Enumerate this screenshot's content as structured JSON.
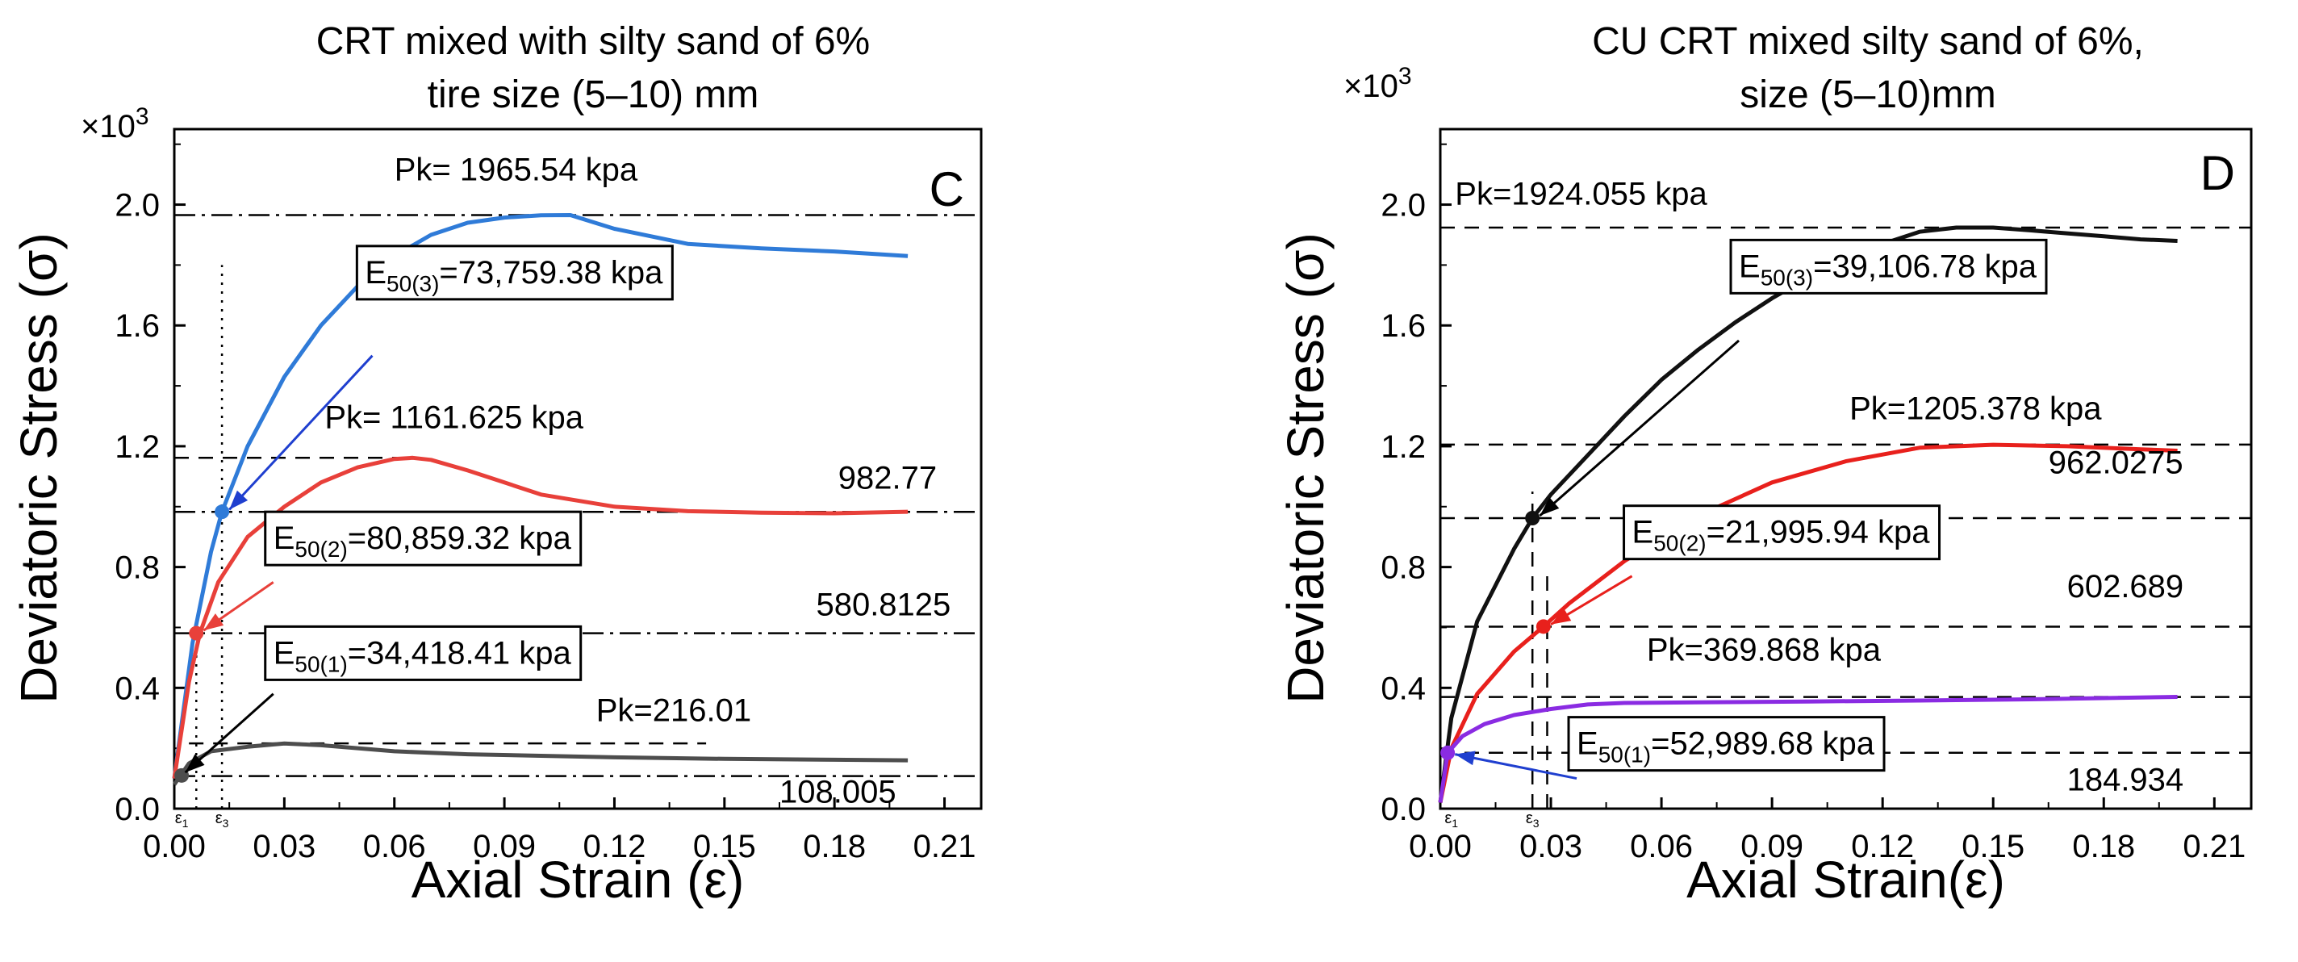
{
  "chart_data": [
    {
      "type": "line",
      "panel_label": "C",
      "title": [
        "CRT mixed with silty sand of 6%",
        "tire size (5–10) mm"
      ],
      "xlabel": "Axial Strain (ε)",
      "ylabel": "Deviatoric Stress (σ)",
      "y_multiplier_base": "×10",
      "y_multiplier_exp": "3",
      "xlim": [
        0,
        0.22
      ],
      "ylim": [
        0,
        2.25
      ],
      "xticks": [
        0,
        0.03,
        0.06,
        0.09,
        0.12,
        0.15,
        0.18,
        0.21
      ],
      "xtick_labels": [
        "0.00",
        "0.03",
        "0.06",
        "0.09",
        "0.12",
        "0.15",
        "0.18",
        "0.21"
      ],
      "yticks": [
        0,
        0.4,
        0.8,
        1.2,
        1.6,
        2.0
      ],
      "ytick_labels": [
        "0.0",
        "0.4",
        "0.8",
        "1.2",
        "1.6",
        "2.0"
      ],
      "series": [
        {
          "name": "blue",
          "color": "#2f7bd8",
          "x": [
            0,
            0.005,
            0.01,
            0.013,
            0.02,
            0.03,
            0.04,
            0.05,
            0.06,
            0.07,
            0.08,
            0.09,
            0.1,
            0.108,
            0.12,
            0.14,
            0.16,
            0.18,
            0.2
          ],
          "y": [
            0.1,
            0.55,
            0.85,
            0.983,
            1.2,
            1.43,
            1.6,
            1.73,
            1.83,
            1.9,
            1.94,
            1.957,
            1.965,
            1.9655,
            1.92,
            1.87,
            1.855,
            1.845,
            1.83
          ]
        },
        {
          "name": "red",
          "color": "#e8403a",
          "x": [
            0,
            0.004,
            0.007,
            0.012,
            0.02,
            0.03,
            0.04,
            0.05,
            0.06,
            0.065,
            0.07,
            0.08,
            0.09,
            0.1,
            0.12,
            0.14,
            0.16,
            0.18,
            0.2
          ],
          "y": [
            0.1,
            0.42,
            0.581,
            0.75,
            0.9,
            1.0,
            1.08,
            1.13,
            1.158,
            1.1616,
            1.155,
            1.12,
            1.08,
            1.04,
            1.0,
            0.985,
            0.98,
            0.978,
            0.983
          ]
        },
        {
          "name": "black",
          "color": "#4d4d4d",
          "x": [
            0,
            0.004,
            0.01,
            0.02,
            0.03,
            0.04,
            0.06,
            0.08,
            0.1,
            0.12,
            0.15,
            0.18,
            0.2
          ],
          "y": [
            0.08,
            0.15,
            0.19,
            0.205,
            0.216,
            0.21,
            0.19,
            0.18,
            0.175,
            0.17,
            0.165,
            0.162,
            0.16
          ]
        }
      ],
      "hlines": [
        {
          "y": 1.96554,
          "style": "dashdot",
          "x_from": 0,
          "x_to": 0.22
        },
        {
          "y": 1.161625,
          "style": "dash",
          "x_from": 0,
          "x_to": 0.065
        },
        {
          "y": 0.98277,
          "style": "dashdot",
          "x_from": 0,
          "x_to": 0.22
        },
        {
          "y": 0.5808125,
          "style": "dashdot",
          "x_from": 0,
          "x_to": 0.22
        },
        {
          "y": 0.21601,
          "style": "dash",
          "x_from": 0.004,
          "x_to": 0.145
        },
        {
          "y": 0.108005,
          "style": "dashdot",
          "x_from": 0,
          "x_to": 0.22
        }
      ],
      "vlines": [
        {
          "x": 0.006,
          "style": "dot",
          "y_from": 0,
          "y_to": 0.6
        },
        {
          "x": 0.013,
          "style": "dot",
          "y_from": 0,
          "y_to": 1.8
        }
      ],
      "points": [
        {
          "x": 0.013,
          "y": 0.983,
          "color": "#2f7bd8"
        },
        {
          "x": 0.006,
          "y": 0.581,
          "color": "#e8403a"
        },
        {
          "x": 0.002,
          "y": 0.11,
          "color": "#4d4d4d"
        }
      ],
      "epsilon_marks": [
        {
          "label": "ε",
          "sub": "1",
          "x": 0.002
        },
        {
          "label": "ε",
          "sub": "3",
          "x": 0.013
        }
      ],
      "annotations": [
        {
          "text": "Pk= 1965.54 kpa",
          "x": 0.06,
          "y": 2.08
        },
        {
          "text": "Pk= 1161.625 kpa",
          "x": 0.041,
          "y": 1.26
        },
        {
          "text": "982.77",
          "x": 0.181,
          "y": 1.06
        },
        {
          "text": "580.8125",
          "x": 0.175,
          "y": 0.64
        },
        {
          "text": "Pk=216.01",
          "x": 0.115,
          "y": 0.29
        },
        {
          "text": "108.005",
          "x": 0.165,
          "y": 0.02
        }
      ],
      "callouts": [
        {
          "main": "E",
          "sub": "50(3)",
          "value": "=73,759.38 kpa",
          "box_x": 0.052,
          "box_y": 1.74,
          "arrow_color": "#1f3fcf",
          "arrow_from": [
            0.054,
            1.5
          ],
          "arrow_to": [
            0.015,
            0.99
          ]
        },
        {
          "main": "E",
          "sub": "50(2)",
          "value": "=80,859.32 kpa",
          "box_x": 0.027,
          "box_y": 0.86,
          "arrow_color": "#e8403a",
          "arrow_from": [
            0.027,
            0.75
          ],
          "arrow_to": [
            0.008,
            0.59
          ]
        },
        {
          "main": "E",
          "sub": "50(1)",
          "value": "=34,418.41 kpa",
          "box_x": 0.027,
          "box_y": 0.48,
          "arrow_color": "#000000",
          "arrow_from": [
            0.027,
            0.38
          ],
          "arrow_to": [
            0.003,
            0.12
          ]
        }
      ]
    },
    {
      "type": "line",
      "panel_label": "D",
      "title": [
        "CU CRT mixed silty sand of 6%,",
        "size (5–10)mm"
      ],
      "xlabel": "Axial Strain(ε)",
      "ylabel": "Deviatoric Stress (σ)",
      "y_multiplier_base": "×10",
      "y_multiplier_exp": "3",
      "xlim": [
        0,
        0.22
      ],
      "ylim": [
        0,
        2.25
      ],
      "xticks": [
        0,
        0.03,
        0.06,
        0.09,
        0.12,
        0.15,
        0.18,
        0.21
      ],
      "xtick_labels": [
        "0.00",
        "0.03",
        "0.06",
        "0.09",
        "0.12",
        "0.15",
        "0.18",
        "0.21"
      ],
      "yticks": [
        0,
        0.4,
        0.8,
        1.2,
        1.6,
        2.0
      ],
      "ytick_labels": [
        "0.0",
        "0.4",
        "0.8",
        "1.2",
        "1.6",
        "2.0"
      ],
      "series": [
        {
          "name": "black",
          "color": "#111111",
          "x": [
            0,
            0.003,
            0.01,
            0.02,
            0.025,
            0.03,
            0.04,
            0.05,
            0.06,
            0.07,
            0.08,
            0.09,
            0.1,
            0.11,
            0.12,
            0.13,
            0.14,
            0.15,
            0.16,
            0.17,
            0.18,
            0.19,
            0.2
          ],
          "y": [
            0.02,
            0.3,
            0.62,
            0.86,
            0.962,
            1.04,
            1.17,
            1.3,
            1.42,
            1.52,
            1.61,
            1.69,
            1.76,
            1.82,
            1.87,
            1.91,
            1.924,
            1.924,
            1.915,
            1.905,
            1.895,
            1.885,
            1.88
          ]
        },
        {
          "name": "red",
          "color": "#e8201c",
          "x": [
            0,
            0.003,
            0.01,
            0.02,
            0.028,
            0.035,
            0.05,
            0.07,
            0.09,
            0.11,
            0.13,
            0.15,
            0.17,
            0.19,
            0.2
          ],
          "y": [
            0.02,
            0.2,
            0.38,
            0.52,
            0.603,
            0.68,
            0.82,
            0.97,
            1.08,
            1.15,
            1.195,
            1.205,
            1.2,
            1.19,
            1.185
          ]
        },
        {
          "name": "purple",
          "color": "#8a2be2",
          "x": [
            0,
            0.002,
            0.006,
            0.012,
            0.02,
            0.03,
            0.04,
            0.05,
            0.07,
            0.1,
            0.13,
            0.16,
            0.2
          ],
          "y": [
            0.02,
            0.185,
            0.24,
            0.28,
            0.31,
            0.33,
            0.345,
            0.35,
            0.352,
            0.355,
            0.358,
            0.362,
            0.37
          ]
        }
      ],
      "hlines": [
        {
          "y": 1.924055,
          "style": "dash",
          "x_from": 0,
          "x_to": 0.22
        },
        {
          "y": 1.205378,
          "style": "dash",
          "x_from": 0,
          "x_to": 0.22
        },
        {
          "y": 0.9620275,
          "style": "dash",
          "x_from": 0,
          "x_to": 0.22
        },
        {
          "y": 0.602689,
          "style": "dash",
          "x_from": 0,
          "x_to": 0.22
        },
        {
          "y": 0.369868,
          "style": "dash",
          "x_from": 0,
          "x_to": 0.22
        },
        {
          "y": 0.184934,
          "style": "dash",
          "x_from": 0,
          "x_to": 0.22
        }
      ],
      "vlines": [
        {
          "x": 0.025,
          "style": "dash",
          "y_from": 0,
          "y_to": 1.05
        },
        {
          "x": 0.029,
          "style": "dash",
          "y_from": 0,
          "y_to": 0.8
        }
      ],
      "points": [
        {
          "x": 0.025,
          "y": 0.962,
          "color": "#111111"
        },
        {
          "x": 0.028,
          "y": 0.603,
          "color": "#e8201c"
        },
        {
          "x": 0.002,
          "y": 0.185,
          "color": "#8a2be2"
        }
      ],
      "epsilon_marks": [
        {
          "label": "ε",
          "sub": "1",
          "x": 0.003
        },
        {
          "label": "ε",
          "sub": "3",
          "x": 0.025
        }
      ],
      "annotations": [
        {
          "text": "Pk=1924.055 kpa",
          "x": 0.004,
          "y": 2.0
        },
        {
          "text": "Pk=1205.378 kpa",
          "x": 0.111,
          "y": 1.29
        },
        {
          "text": "962.0275",
          "x": 0.165,
          "y": 1.11
        },
        {
          "text": "602.689",
          "x": 0.17,
          "y": 0.7
        },
        {
          "text": "Pk=369.868 kpa",
          "x": 0.056,
          "y": 0.49
        },
        {
          "text": "184.934",
          "x": 0.17,
          "y": 0.06
        }
      ],
      "callouts": [
        {
          "main": "E",
          "sub": "50(3)",
          "value": "=39,106.78 kpa",
          "box_x": 0.081,
          "box_y": 1.76,
          "arrow_color": "#000000",
          "arrow_from": [
            0.081,
            1.55
          ],
          "arrow_to": [
            0.027,
            0.97
          ]
        },
        {
          "main": "E",
          "sub": "50(2)",
          "value": "=21,995.94 kpa",
          "box_x": 0.052,
          "box_y": 0.88,
          "arrow_color": "#e8201c",
          "arrow_from": [
            0.052,
            0.77
          ],
          "arrow_to": [
            0.03,
            0.61
          ]
        },
        {
          "main": "E",
          "sub": "50(1)",
          "value": "=52,989.68 kpa",
          "box_x": 0.037,
          "box_y": 0.18,
          "arrow_color": "#1f3fcf",
          "arrow_from": [
            0.037,
            0.1
          ],
          "arrow_to": [
            0.004,
            0.18
          ]
        }
      ]
    }
  ]
}
